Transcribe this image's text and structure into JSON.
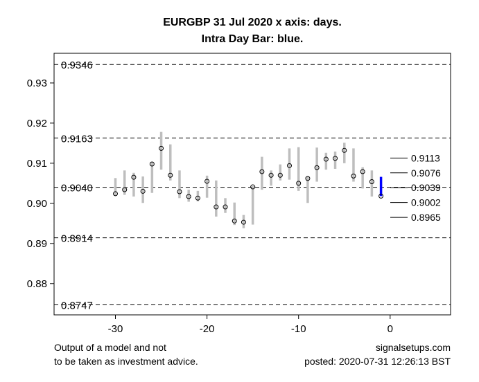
{
  "chart_data": {
    "type": "bar",
    "title": [
      "EURGBP 31 Jul 2020 x axis: days.",
      "Intra Day Bar: blue."
    ],
    "xlabel": "",
    "ylabel": "",
    "xlim": [
      -36.7,
      6.6
    ],
    "ylim": [
      0.8722,
      0.9374
    ],
    "x_ticks": [
      -30,
      -20,
      -10,
      0
    ],
    "y_ticks": [
      0.88,
      0.89,
      0.9,
      0.91,
      0.92,
      0.93
    ],
    "y_tick_labels": [
      "0.88",
      "0.89",
      "0.90",
      "0.91",
      "0.92",
      "0.93"
    ],
    "dashed_levels": [
      {
        "value": 0.9346,
        "label": "0.9346"
      },
      {
        "value": 0.9163,
        "label": "0.9163"
      },
      {
        "value": 0.904,
        "label": "0.9040"
      },
      {
        "value": 0.8914,
        "label": "0.8914"
      },
      {
        "value": 0.8747,
        "label": "0.8747"
      }
    ],
    "right_levels": [
      {
        "value": 0.9113,
        "label": "0.9113"
      },
      {
        "value": 0.9076,
        "label": "0.9076"
      },
      {
        "value": 0.9039,
        "label": "0.9039"
      },
      {
        "value": 0.9002,
        "label": "0.9002"
      },
      {
        "value": 0.8965,
        "label": "0.8965"
      }
    ],
    "bar_color": "#bebebe",
    "intraday_color": "#0000ff",
    "series": [
      {
        "day": -30,
        "low": 0.9019,
        "high": 0.9063,
        "close": 0.9024
      },
      {
        "day": -29,
        "low": 0.9021,
        "high": 0.9082,
        "close": 0.9034
      },
      {
        "day": -28,
        "low": 0.9017,
        "high": 0.9076,
        "close": 0.9065
      },
      {
        "day": -27,
        "low": 0.9001,
        "high": 0.9067,
        "close": 0.903
      },
      {
        "day": -26,
        "low": 0.9026,
        "high": 0.9103,
        "close": 0.9098
      },
      {
        "day": -25,
        "low": 0.9084,
        "high": 0.9178,
        "close": 0.9137
      },
      {
        "day": -24,
        "low": 0.9057,
        "high": 0.9147,
        "close": 0.907
      },
      {
        "day": -23,
        "low": 0.9013,
        "high": 0.9082,
        "close": 0.9029
      },
      {
        "day": -22,
        "low": 0.9004,
        "high": 0.9034,
        "close": 0.9017
      },
      {
        "day": -21,
        "low": 0.9005,
        "high": 0.9031,
        "close": 0.9013
      },
      {
        "day": -20,
        "low": 0.9014,
        "high": 0.9069,
        "close": 0.9055
      },
      {
        "day": -19,
        "low": 0.8967,
        "high": 0.9057,
        "close": 0.8991
      },
      {
        "day": -18,
        "low": 0.8976,
        "high": 0.9013,
        "close": 0.8991
      },
      {
        "day": -17,
        "low": 0.8946,
        "high": 0.9002,
        "close": 0.8956
      },
      {
        "day": -16,
        "low": 0.8938,
        "high": 0.8971,
        "close": 0.8953
      },
      {
        "day": -15,
        "low": 0.8947,
        "high": 0.9043,
        "close": 0.9041
      },
      {
        "day": -14,
        "low": 0.9034,
        "high": 0.9116,
        "close": 0.9079
      },
      {
        "day": -13,
        "low": 0.9044,
        "high": 0.9082,
        "close": 0.907
      },
      {
        "day": -12,
        "low": 0.9057,
        "high": 0.9097,
        "close": 0.907
      },
      {
        "day": -11,
        "low": 0.9059,
        "high": 0.9137,
        "close": 0.9094
      },
      {
        "day": -10,
        "low": 0.9031,
        "high": 0.914,
        "close": 0.905
      },
      {
        "day": -9,
        "low": 0.9001,
        "high": 0.9067,
        "close": 0.9062
      },
      {
        "day": -8,
        "low": 0.9054,
        "high": 0.9139,
        "close": 0.9089
      },
      {
        "day": -7,
        "low": 0.9084,
        "high": 0.9126,
        "close": 0.911
      },
      {
        "day": -6,
        "low": 0.9086,
        "high": 0.9129,
        "close": 0.9112
      },
      {
        "day": -5,
        "low": 0.91,
        "high": 0.9151,
        "close": 0.9132
      },
      {
        "day": -4,
        "low": 0.9054,
        "high": 0.9137,
        "close": 0.9068
      },
      {
        "day": -3,
        "low": 0.9037,
        "high": 0.909,
        "close": 0.9079
      },
      {
        "day": -2,
        "low": 0.9017,
        "high": 0.9082,
        "close": 0.9054
      },
      {
        "day": -1,
        "low": 0.9018,
        "high": 0.9066,
        "close": 0.9018,
        "intraday": true
      }
    ]
  },
  "footer": {
    "disclaimer_1": "Output of a model and not",
    "disclaimer_2": "to be taken as investment advice.",
    "site": "signalsetups.com",
    "posted": "posted: 2020-07-31 12:26:13 BST"
  }
}
